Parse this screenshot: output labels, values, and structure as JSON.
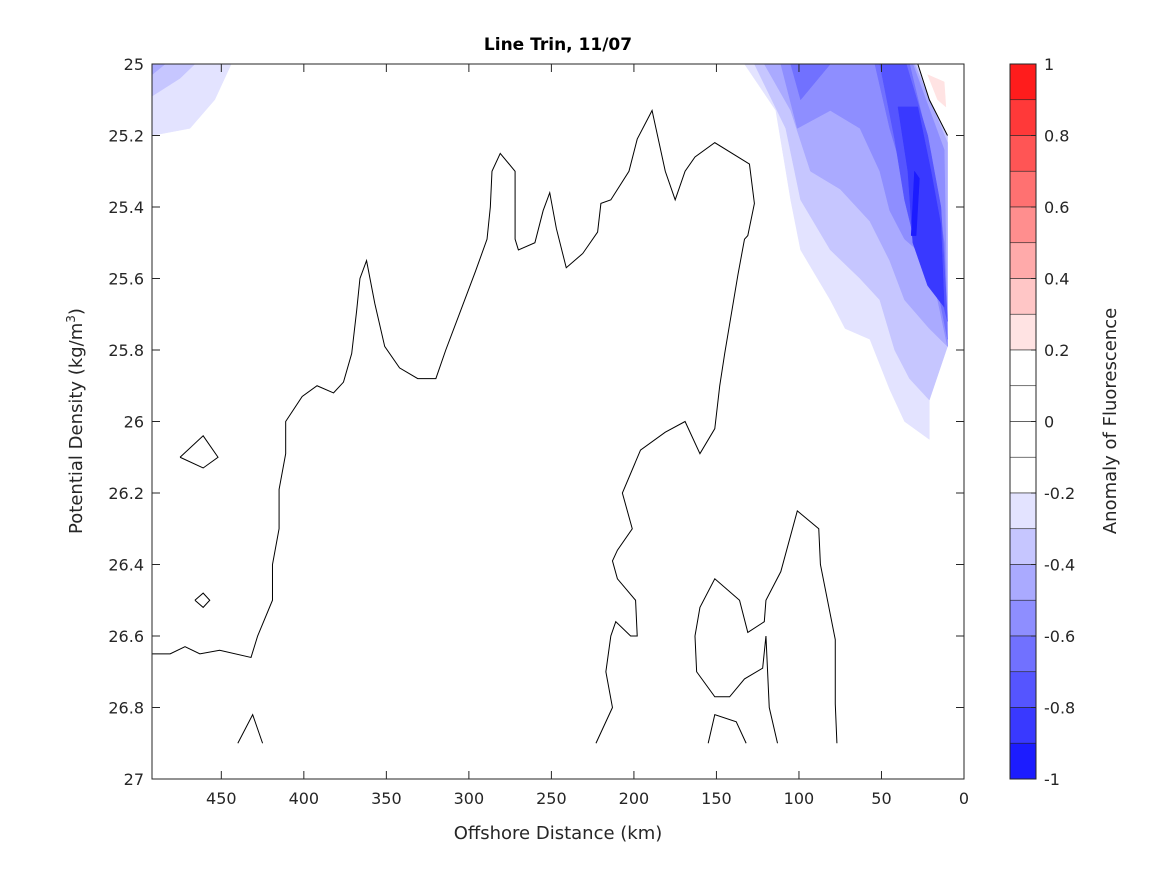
{
  "chart_data": {
    "type": "contour",
    "title": "Line Trin, 11/07",
    "xlabel": "Offshore Distance (km)",
    "ylabel_main": "Potential Density (kg/m",
    "ylabel_sup": "3",
    "ylabel_close": ")",
    "xlim": [
      0,
      492
    ],
    "x_reversed": true,
    "ylim": [
      25,
      27
    ],
    "y_reversed": true,
    "xticks": [
      450,
      400,
      350,
      300,
      250,
      200,
      150,
      100,
      50,
      0
    ],
    "yticks": [
      25,
      25.2,
      25.4,
      25.6,
      25.8,
      26,
      26.2,
      26.4,
      26.6,
      26.8,
      27
    ],
    "ytick_labels": [
      "25",
      "25.2",
      "25.4",
      "25.6",
      "25.8",
      "26",
      "26.2",
      "26.4",
      "26.6",
      "26.8",
      "27"
    ],
    "colorbar": {
      "label": "Anomaly of Fluorescence",
      "range": [
        -1,
        1
      ],
      "step": 0.1,
      "ticks": [
        1,
        0.8,
        0.6,
        0.4,
        0.2,
        0,
        -0.2,
        -0.4,
        -0.6,
        -0.8,
        -1
      ],
      "tick_labels": [
        "1",
        "0.8",
        "0.6",
        "0.4",
        "0.2",
        "0",
        "-0.2",
        "-0.4",
        "-0.6",
        "-0.8",
        "-1"
      ],
      "positive_color": "#ff0000",
      "negative_color": "#0000ff"
    },
    "filled_regions": [
      {
        "level": -0.1,
        "points": [
          [
            492,
            25
          ],
          [
            372,
            25
          ],
          [
            384,
            25.13
          ],
          [
            390,
            25.21
          ],
          [
            402,
            25.24
          ],
          [
            420,
            25.24
          ],
          [
            432,
            25.32
          ],
          [
            451,
            25.35
          ],
          [
            475,
            25.41
          ],
          [
            487,
            25.42
          ],
          [
            492,
            25.41
          ]
        ]
      },
      {
        "level": -0.2,
        "points": [
          [
            492,
            25
          ],
          [
            444,
            25
          ],
          [
            454,
            25.1
          ],
          [
            469,
            25.18
          ],
          [
            492,
            25.2
          ]
        ]
      },
      {
        "level": -0.3,
        "points": [
          [
            492,
            25
          ],
          [
            466,
            25
          ],
          [
            475,
            25.04
          ],
          [
            492,
            25.09
          ]
        ]
      },
      {
        "level": -0.4,
        "points": [
          [
            492,
            25
          ],
          [
            484,
            25
          ],
          [
            492,
            25.03
          ]
        ]
      },
      {
        "level": -0.1,
        "points": [
          [
            336,
            25
          ],
          [
            305,
            25
          ],
          [
            317,
            25.07
          ],
          [
            330,
            25.1
          ],
          [
            334,
            25.06
          ]
        ]
      },
      {
        "level": -0.1,
        "points": [
          [
            245,
            25
          ],
          [
            220,
            25
          ],
          [
            230,
            25.06
          ],
          [
            239,
            25.06
          ]
        ]
      },
      {
        "level": -0.1,
        "points": [
          [
            145,
            25
          ],
          [
            124,
            25.1
          ],
          [
            114,
            25.38
          ],
          [
            105,
            25.58
          ],
          [
            81,
            25.86
          ],
          [
            66,
            25.9
          ],
          [
            51,
            25.93
          ],
          [
            48,
            26.05
          ],
          [
            36,
            26.12
          ],
          [
            21,
            26.18
          ],
          [
            21,
            25.91
          ],
          [
            10,
            25.79
          ],
          [
            10,
            25.2
          ],
          [
            27,
            25.0
          ]
        ]
      },
      {
        "level": -0.2,
        "points": [
          [
            133,
            25
          ],
          [
            114,
            25.13
          ],
          [
            105,
            25.38
          ],
          [
            99,
            25.52
          ],
          [
            81,
            25.66
          ],
          [
            72,
            25.74
          ],
          [
            57,
            25.77
          ],
          [
            45,
            25.91
          ],
          [
            36,
            26.0
          ],
          [
            21,
            26.05
          ],
          [
            21,
            25.91
          ],
          [
            10,
            25.79
          ],
          [
            10,
            25.2
          ],
          [
            28,
            25
          ]
        ]
      },
      {
        "level": -0.3,
        "points": [
          [
            127,
            25
          ],
          [
            108,
            25.18
          ],
          [
            99,
            25.38
          ],
          [
            81,
            25.52
          ],
          [
            63,
            25.6
          ],
          [
            51,
            25.66
          ],
          [
            42,
            25.8
          ],
          [
            33,
            25.88
          ],
          [
            21,
            25.94
          ],
          [
            10,
            25.79
          ],
          [
            10,
            25.2
          ],
          [
            29,
            25
          ]
        ]
      },
      {
        "level": -0.4,
        "points": [
          [
            121,
            25
          ],
          [
            105,
            25.13
          ],
          [
            93,
            25.3
          ],
          [
            75,
            25.35
          ],
          [
            57,
            25.44
          ],
          [
            45,
            25.55
          ],
          [
            36,
            25.66
          ],
          [
            21,
            25.74
          ],
          [
            10,
            25.79
          ],
          [
            10,
            25.22
          ],
          [
            30,
            25
          ]
        ]
      },
      {
        "level": -0.5,
        "points": [
          [
            111,
            25
          ],
          [
            101,
            25.18
          ],
          [
            81,
            25.13
          ],
          [
            63,
            25.18
          ],
          [
            51,
            25.3
          ],
          [
            45,
            25.41
          ],
          [
            36,
            25.49
          ],
          [
            21,
            25.55
          ],
          [
            10,
            25.79
          ],
          [
            12,
            25.24
          ],
          [
            31,
            25
          ]
        ]
      },
      {
        "level": -0.6,
        "points": [
          [
            105,
            25
          ],
          [
            99,
            25.1
          ],
          [
            81,
            25
          ]
        ]
      },
      {
        "level": -0.6,
        "points": [
          [
            54,
            25
          ],
          [
            45,
            25.18
          ],
          [
            36,
            25.32
          ],
          [
            30,
            25.49
          ],
          [
            18,
            25.58
          ],
          [
            10,
            25.77
          ],
          [
            12,
            25.5
          ],
          [
            20,
            25.25
          ],
          [
            33,
            25
          ]
        ]
      },
      {
        "level": -0.7,
        "points": [
          [
            51,
            25
          ],
          [
            48,
            25.07
          ],
          [
            42,
            25.21
          ],
          [
            36,
            25.38
          ],
          [
            27,
            25.55
          ],
          [
            15,
            25.63
          ],
          [
            10,
            25.72
          ],
          [
            14,
            25.4
          ],
          [
            22,
            25.2
          ],
          [
            35,
            25
          ]
        ]
      },
      {
        "level": -0.8,
        "points": [
          [
            40,
            25.12
          ],
          [
            34,
            25.3
          ],
          [
            31,
            25.5
          ],
          [
            22,
            25.62
          ],
          [
            12,
            25.68
          ],
          [
            14,
            25.45
          ],
          [
            20,
            25.3
          ],
          [
            28,
            25.12
          ]
        ]
      },
      {
        "level": -0.9,
        "points": [
          [
            30,
            25.3
          ],
          [
            32,
            25.48
          ],
          [
            29,
            25.48
          ],
          [
            27,
            25.32
          ]
        ]
      },
      {
        "level": 0.1,
        "points": [
          [
            28,
            25
          ],
          [
            11,
            25
          ],
          [
            10,
            25.2
          ],
          [
            21,
            25.1
          ]
        ]
      },
      {
        "level": 0.2,
        "points": [
          [
            22,
            25.03
          ],
          [
            12,
            25.05
          ],
          [
            11,
            25.12
          ],
          [
            16,
            25.1
          ]
        ]
      }
    ],
    "zero_contours": [
      [
        [
          492,
          26.65
        ],
        [
          481,
          26.65
        ],
        [
          472,
          26.63
        ],
        [
          463,
          26.65
        ],
        [
          451,
          26.64
        ],
        [
          432,
          26.66
        ],
        [
          428,
          26.6
        ],
        [
          419,
          26.5
        ],
        [
          419,
          26.4
        ],
        [
          415,
          26.3
        ],
        [
          415,
          26.19
        ],
        [
          411,
          26.09
        ],
        [
          411,
          26.0
        ],
        [
          401,
          25.93
        ],
        [
          392,
          25.9
        ],
        [
          382,
          25.92
        ],
        [
          376,
          25.89
        ],
        [
          371,
          25.81
        ],
        [
          368,
          25.69
        ],
        [
          366,
          25.6
        ],
        [
          362,
          25.55
        ],
        [
          357,
          25.67
        ],
        [
          351,
          25.79
        ],
        [
          342,
          25.85
        ],
        [
          331,
          25.88
        ],
        [
          320,
          25.88
        ],
        [
          314,
          25.8
        ],
        [
          305,
          25.69
        ],
        [
          296,
          25.58
        ],
        [
          289,
          25.49
        ],
        [
          287,
          25.4
        ],
        [
          286,
          25.3
        ],
        [
          281,
          25.25
        ],
        [
          272,
          25.3
        ],
        [
          272,
          25.49
        ],
        [
          270,
          25.52
        ],
        [
          260,
          25.5
        ],
        [
          255,
          25.41
        ],
        [
          251,
          25.36
        ],
        [
          247,
          25.46
        ],
        [
          241,
          25.57
        ],
        [
          231,
          25.53
        ],
        [
          222,
          25.47
        ],
        [
          220,
          25.39
        ],
        [
          214,
          25.38
        ],
        [
          203,
          25.3
        ],
        [
          198,
          25.21
        ],
        [
          189,
          25.13
        ],
        [
          181,
          25.3
        ],
        [
          175,
          25.38
        ],
        [
          169,
          25.3
        ],
        [
          163,
          25.26
        ],
        [
          151,
          25.22
        ],
        [
          130,
          25.28
        ],
        [
          127,
          25.39
        ],
        [
          131,
          25.48
        ],
        [
          133,
          25.49
        ],
        [
          137,
          25.59
        ],
        [
          145,
          25.81
        ],
        [
          148,
          25.9
        ],
        [
          151,
          26.02
        ],
        [
          160,
          26.09
        ],
        [
          169,
          26.0
        ],
        [
          181,
          26.03
        ],
        [
          196,
          26.08
        ],
        [
          207,
          26.2
        ],
        [
          201,
          26.3
        ],
        [
          210,
          26.36
        ],
        [
          213,
          26.39
        ],
        [
          210,
          26.44
        ],
        [
          199,
          26.5
        ],
        [
          198,
          26.6
        ],
        [
          202,
          26.6
        ],
        [
          211,
          26.56
        ],
        [
          214,
          26.6
        ],
        [
          217,
          26.7
        ],
        [
          213,
          26.8
        ],
        [
          223,
          26.9
        ]
      ],
      [
        [
          475,
          26.1
        ],
        [
          461,
          26.04
        ],
        [
          452,
          26.1
        ],
        [
          461,
          26.13
        ],
        [
          475,
          26.1
        ]
      ],
      [
        [
          466,
          26.5
        ],
        [
          461,
          26.48
        ],
        [
          457,
          26.5
        ],
        [
          461,
          26.52
        ],
        [
          466,
          26.5
        ]
      ],
      [
        [
          440,
          26.9
        ],
        [
          431,
          26.82
        ],
        [
          425,
          26.9
        ]
      ],
      [
        [
          163,
          26.6
        ],
        [
          162,
          26.7
        ],
        [
          151,
          26.77
        ],
        [
          142,
          26.77
        ],
        [
          133,
          26.72
        ],
        [
          122,
          26.69
        ],
        [
          120,
          26.6
        ],
        [
          118,
          26.8
        ],
        [
          113,
          26.9
        ]
      ],
      [
        [
          163,
          26.6
        ],
        [
          160,
          26.52
        ],
        [
          151,
          26.44
        ],
        [
          136,
          26.5
        ],
        [
          131,
          26.59
        ],
        [
          121,
          26.56
        ],
        [
          120,
          26.5
        ],
        [
          111,
          26.42
        ],
        [
          101,
          26.25
        ],
        [
          88,
          26.3
        ],
        [
          87,
          26.4
        ],
        [
          78,
          26.61
        ],
        [
          78,
          26.79
        ],
        [
          77,
          26.9
        ]
      ],
      [
        [
          155,
          26.9
        ],
        [
          151,
          26.82
        ],
        [
          138,
          26.84
        ],
        [
          132,
          26.9
        ]
      ],
      [
        [
          28,
          25.0
        ],
        [
          21,
          25.1
        ],
        [
          10,
          25.2
        ]
      ]
    ]
  }
}
